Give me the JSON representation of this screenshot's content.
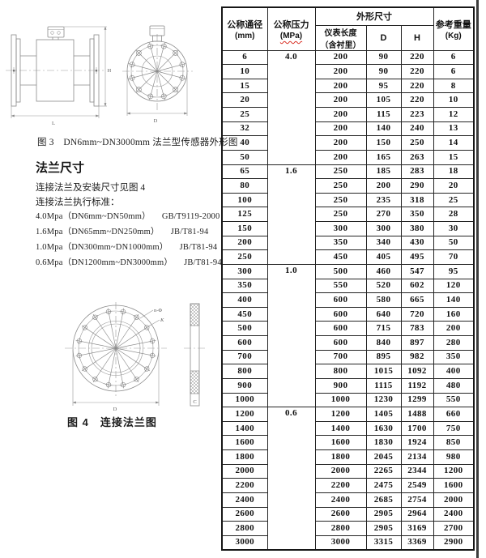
{
  "figures": {
    "fig3": {
      "caption": "图 3　DN6mm~DN3000mm 法兰型传感器外形图",
      "labels": {
        "h": "H",
        "l": "L",
        "d": "D"
      }
    },
    "fig4": {
      "caption": "图 4　连接法兰图",
      "labels": {
        "n_phi": "n-Φ",
        "k": "K",
        "d": "D",
        "c": "C"
      }
    }
  },
  "flange_section": {
    "title": "法兰尺寸",
    "line1": "连接法兰及安装尺寸见图 4",
    "line2": "连接法兰执行标准：",
    "standards": [
      {
        "range": "4.0Mpa（DN6mm~DN50mm）",
        "code": "GB/T9119-2000"
      },
      {
        "range": "1.6Mpa（DN65mm~DN250mm）",
        "code": "JB/T81-94"
      },
      {
        "range": "1.0Mpa（DN300mm~DN1000mm）",
        "code": "JB/T81-94"
      },
      {
        "range": "0.6Mpa（DN1200mm~DN3000mm）",
        "code": "JB/T81-94"
      }
    ]
  },
  "table": {
    "header": {
      "diameter_l1": "公称通径",
      "diameter_l2": "(mm)",
      "pressure_l1": "公称压力",
      "pressure_l2": "(MPa)",
      "dims_group": "外形尺寸",
      "length_l1": "仪表长度",
      "length_l2": "（含衬里）",
      "d": "D",
      "h": "H",
      "weight_l1": "参考重量",
      "weight_l2": "(Kg)"
    },
    "columns": [
      "公称通径(mm)",
      "公称压力(MPa)",
      "仪表长度(含衬里)",
      "D",
      "H",
      "参考重量(Kg)"
    ],
    "groups": [
      {
        "pressure": "4.0",
        "rows": [
          [
            6,
            200,
            90,
            220,
            6
          ],
          [
            10,
            200,
            90,
            220,
            6
          ],
          [
            15,
            200,
            95,
            220,
            8
          ],
          [
            20,
            200,
            105,
            220,
            10
          ],
          [
            25,
            200,
            115,
            223,
            12
          ],
          [
            32,
            200,
            140,
            240,
            13
          ],
          [
            40,
            200,
            150,
            250,
            14
          ],
          [
            50,
            200,
            165,
            263,
            15
          ]
        ]
      },
      {
        "pressure": "1.6",
        "rows": [
          [
            65,
            250,
            185,
            283,
            18
          ],
          [
            80,
            250,
            200,
            290,
            20
          ],
          [
            100,
            250,
            235,
            318,
            25
          ],
          [
            125,
            250,
            270,
            350,
            28
          ],
          [
            150,
            300,
            300,
            380,
            30
          ],
          [
            200,
            350,
            340,
            430,
            50
          ],
          [
            250,
            450,
            405,
            495,
            70
          ]
        ]
      },
      {
        "pressure": "1.0",
        "rows": [
          [
            300,
            500,
            460,
            547,
            95
          ],
          [
            350,
            550,
            520,
            602,
            120
          ],
          [
            400,
            600,
            580,
            665,
            140
          ],
          [
            450,
            600,
            640,
            720,
            160
          ],
          [
            500,
            600,
            715,
            783,
            200
          ],
          [
            600,
            600,
            840,
            897,
            280
          ],
          [
            700,
            700,
            895,
            982,
            350
          ],
          [
            800,
            800,
            1015,
            1092,
            400
          ],
          [
            900,
            900,
            1115,
            1192,
            480
          ],
          [
            1000,
            1000,
            1230,
            1299,
            550
          ]
        ]
      },
      {
        "pressure": "0.6",
        "rows": [
          [
            1200,
            1200,
            1405,
            1488,
            660
          ],
          [
            1400,
            1400,
            1630,
            1700,
            750
          ],
          [
            1600,
            1600,
            1830,
            1924,
            850
          ],
          [
            1800,
            1800,
            2045,
            2134,
            980
          ],
          [
            2000,
            2000,
            2265,
            2344,
            1200
          ],
          [
            2200,
            2200,
            2475,
            2549,
            1600
          ],
          [
            2400,
            2400,
            2685,
            2754,
            2000
          ],
          [
            2600,
            2600,
            2905,
            2964,
            2400
          ],
          [
            2800,
            2800,
            2905,
            3169,
            2700
          ],
          [
            3000,
            3000,
            3315,
            3369,
            2900
          ]
        ]
      }
    ]
  },
  "colors": {
    "squiggle": "#d93025",
    "drawing_line": "#8a8a8a",
    "table_border": "#242424"
  }
}
